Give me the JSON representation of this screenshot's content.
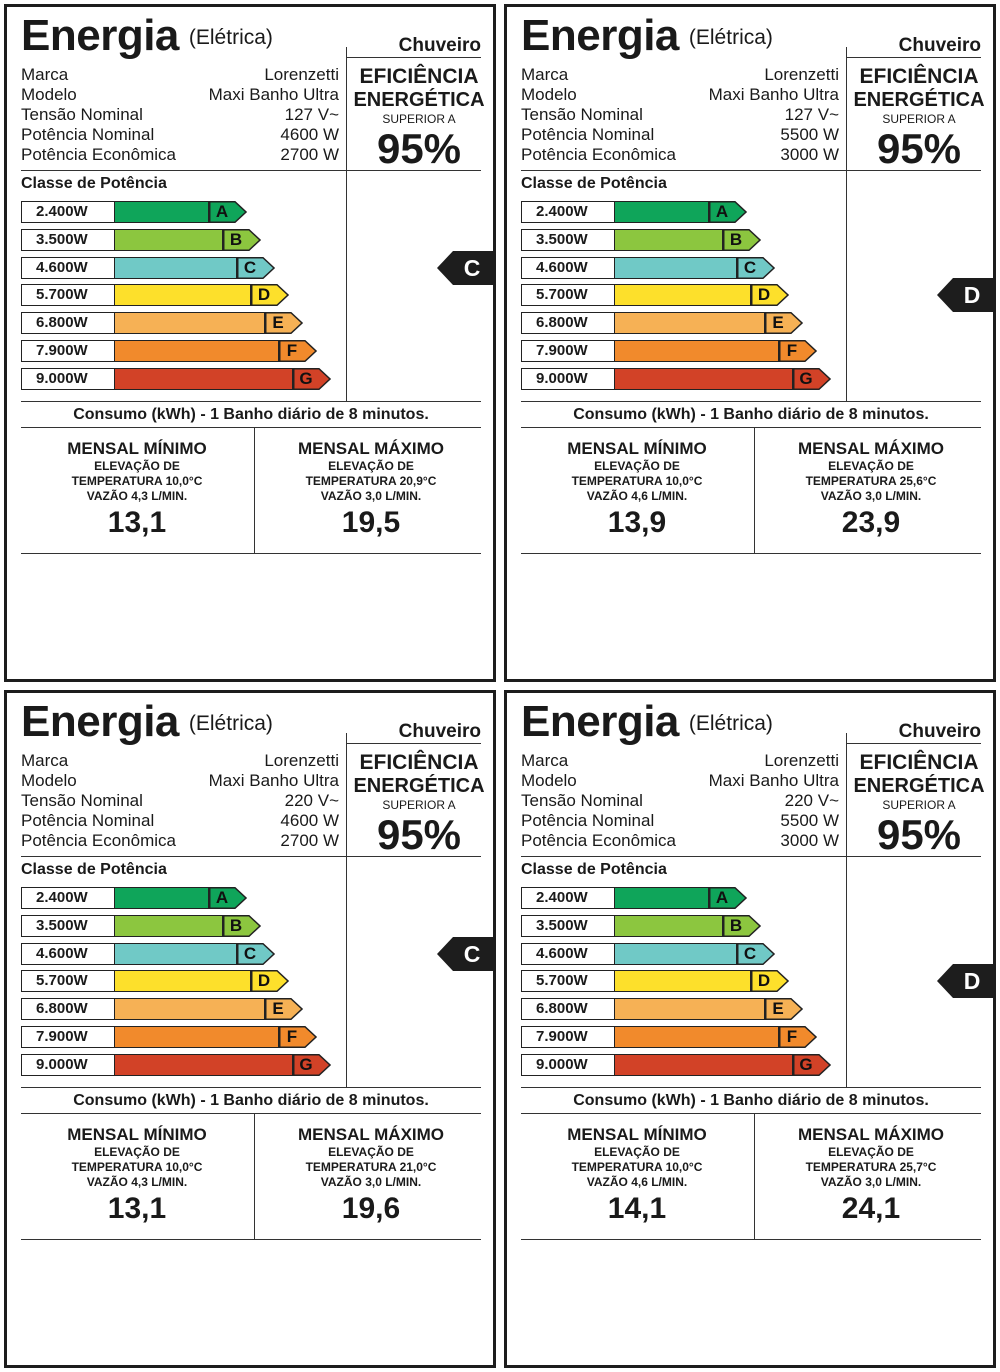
{
  "labels": [
    {
      "title": "Energia",
      "subtitle": "(Elétrica)",
      "product": "Chuveiro",
      "specs": [
        {
          "label": "Marca",
          "value": "Lorenzetti"
        },
        {
          "label": "Modelo",
          "value": "Maxi Banho Ultra"
        },
        {
          "label": "Tensão Nominal",
          "value": "127 V~"
        },
        {
          "label": "Potência Nominal",
          "value": "4600 W"
        },
        {
          "label": "Potência Econômica",
          "value": "2700 W"
        }
      ],
      "efficiency": {
        "line1": "EFICIÊNCIA",
        "line2": "ENERGÉTICA",
        "line3": "SUPERIOR A",
        "value": "95%"
      },
      "classe_title": "Classe de Potência",
      "classes": [
        {
          "power": "2.400W",
          "letter": "A",
          "color": "#0fa55a"
        },
        {
          "power": "3.500W",
          "letter": "B",
          "color": "#8cc63f"
        },
        {
          "power": "4.600W",
          "letter": "C",
          "color": "#70c9c6"
        },
        {
          "power": "5.700W",
          "letter": "D",
          "color": "#fde02b"
        },
        {
          "power": "6.800W",
          "letter": "E",
          "color": "#f6b155"
        },
        {
          "power": "7.900W",
          "letter": "F",
          "color": "#f18a2c"
        },
        {
          "power": "9.000W",
          "letter": "G",
          "color": "#d24227"
        }
      ],
      "rating": "C",
      "consumo": "Consumo (kWh) - 1 Banho diário de 8 minutos.",
      "min": {
        "title": "MENSAL MÍNIMO",
        "l1": "ELEVAÇÃO DE",
        "l2": "TEMPERATURA 10,0°C",
        "l3": "VAZÃO 4,3 L/MIN.",
        "value": "13,1"
      },
      "max": {
        "title": "MENSAL MÁXIMO",
        "l1": "ELEVAÇÃO DE",
        "l2": "TEMPERATURA 20,9°C",
        "l3": "VAZÃO 3,0 L/MIN.",
        "value": "19,5"
      }
    },
    {
      "title": "Energia",
      "subtitle": "(Elétrica)",
      "product": "Chuveiro",
      "specs": [
        {
          "label": "Marca",
          "value": "Lorenzetti"
        },
        {
          "label": "Modelo",
          "value": "Maxi Banho Ultra"
        },
        {
          "label": "Tensão Nominal",
          "value": "127 V~"
        },
        {
          "label": "Potência Nominal",
          "value": "5500 W"
        },
        {
          "label": "Potência Econômica",
          "value": "3000 W"
        }
      ],
      "efficiency": {
        "line1": "EFICIÊNCIA",
        "line2": "ENERGÉTICA",
        "line3": "SUPERIOR A",
        "value": "95%"
      },
      "classe_title": "Classe de Potência",
      "classes": [
        {
          "power": "2.400W",
          "letter": "A",
          "color": "#0fa55a"
        },
        {
          "power": "3.500W",
          "letter": "B",
          "color": "#8cc63f"
        },
        {
          "power": "4.600W",
          "letter": "C",
          "color": "#70c9c6"
        },
        {
          "power": "5.700W",
          "letter": "D",
          "color": "#fde02b"
        },
        {
          "power": "6.800W",
          "letter": "E",
          "color": "#f6b155"
        },
        {
          "power": "7.900W",
          "letter": "F",
          "color": "#f18a2c"
        },
        {
          "power": "9.000W",
          "letter": "G",
          "color": "#d24227"
        }
      ],
      "rating": "D",
      "consumo": "Consumo (kWh) - 1 Banho diário de 8 minutos.",
      "min": {
        "title": "MENSAL MÍNIMO",
        "l1": "ELEVAÇÃO DE",
        "l2": "TEMPERATURA 10,0°C",
        "l3": "VAZÃO 4,6 L/MIN.",
        "value": "13,9"
      },
      "max": {
        "title": "MENSAL MÁXIMO",
        "l1": "ELEVAÇÃO DE",
        "l2": "TEMPERATURA 25,6°C",
        "l3": "VAZÃO 3,0 L/MIN.",
        "value": "23,9"
      }
    },
    {
      "title": "Energia",
      "subtitle": "(Elétrica)",
      "product": "Chuveiro",
      "specs": [
        {
          "label": "Marca",
          "value": "Lorenzetti"
        },
        {
          "label": "Modelo",
          "value": "Maxi Banho Ultra"
        },
        {
          "label": "Tensão Nominal",
          "value": "220 V~"
        },
        {
          "label": "Potência Nominal",
          "value": "4600 W"
        },
        {
          "label": "Potência Econômica",
          "value": "2700 W"
        }
      ],
      "efficiency": {
        "line1": "EFICIÊNCIA",
        "line2": "ENERGÉTICA",
        "line3": "SUPERIOR A",
        "value": "95%"
      },
      "classe_title": "Classe de Potência",
      "classes": [
        {
          "power": "2.400W",
          "letter": "A",
          "color": "#0fa55a"
        },
        {
          "power": "3.500W",
          "letter": "B",
          "color": "#8cc63f"
        },
        {
          "power": "4.600W",
          "letter": "C",
          "color": "#70c9c6"
        },
        {
          "power": "5.700W",
          "letter": "D",
          "color": "#fde02b"
        },
        {
          "power": "6.800W",
          "letter": "E",
          "color": "#f6b155"
        },
        {
          "power": "7.900W",
          "letter": "F",
          "color": "#f18a2c"
        },
        {
          "power": "9.000W",
          "letter": "G",
          "color": "#d24227"
        }
      ],
      "rating": "C",
      "consumo": "Consumo (kWh) - 1 Banho diário de 8 minutos.",
      "min": {
        "title": "MENSAL MÍNIMO",
        "l1": "ELEVAÇÃO DE",
        "l2": "TEMPERATURA 10,0°C",
        "l3": "VAZÃO 4,3 L/MIN.",
        "value": "13,1"
      },
      "max": {
        "title": "MENSAL MÁXIMO",
        "l1": "ELEVAÇÃO DE",
        "l2": "TEMPERATURA 21,0°C",
        "l3": "VAZÃO 3,0 L/MIN.",
        "value": "19,6"
      }
    },
    {
      "title": "Energia",
      "subtitle": "(Elétrica)",
      "product": "Chuveiro",
      "specs": [
        {
          "label": "Marca",
          "value": "Lorenzetti"
        },
        {
          "label": "Modelo",
          "value": "Maxi Banho Ultra"
        },
        {
          "label": "Tensão Nominal",
          "value": "220 V~"
        },
        {
          "label": "Potência Nominal",
          "value": "5500 W"
        },
        {
          "label": "Potência Econômica",
          "value": "3000 W"
        }
      ],
      "efficiency": {
        "line1": "EFICIÊNCIA",
        "line2": "ENERGÉTICA",
        "line3": "SUPERIOR A",
        "value": "95%"
      },
      "classe_title": "Classe de Potência",
      "classes": [
        {
          "power": "2.400W",
          "letter": "A",
          "color": "#0fa55a"
        },
        {
          "power": "3.500W",
          "letter": "B",
          "color": "#8cc63f"
        },
        {
          "power": "4.600W",
          "letter": "C",
          "color": "#70c9c6"
        },
        {
          "power": "5.700W",
          "letter": "D",
          "color": "#fde02b"
        },
        {
          "power": "6.800W",
          "letter": "E",
          "color": "#f6b155"
        },
        {
          "power": "7.900W",
          "letter": "F",
          "color": "#f18a2c"
        },
        {
          "power": "9.000W",
          "letter": "G",
          "color": "#d24227"
        }
      ],
      "rating": "D",
      "consumo": "Consumo (kWh) - 1 Banho diário de 8 minutos.",
      "min": {
        "title": "MENSAL MÍNIMO",
        "l1": "ELEVAÇÃO DE",
        "l2": "TEMPERATURA 10,0°C",
        "l3": "VAZÃO 4,6 L/MIN.",
        "value": "14,1"
      },
      "max": {
        "title": "MENSAL MÁXIMO",
        "l1": "ELEVAÇÃO DE",
        "l2": "TEMPERATURA 25,7°C",
        "l3": "VAZÃO 3,0 L/MIN.",
        "value": "24,1"
      }
    }
  ]
}
